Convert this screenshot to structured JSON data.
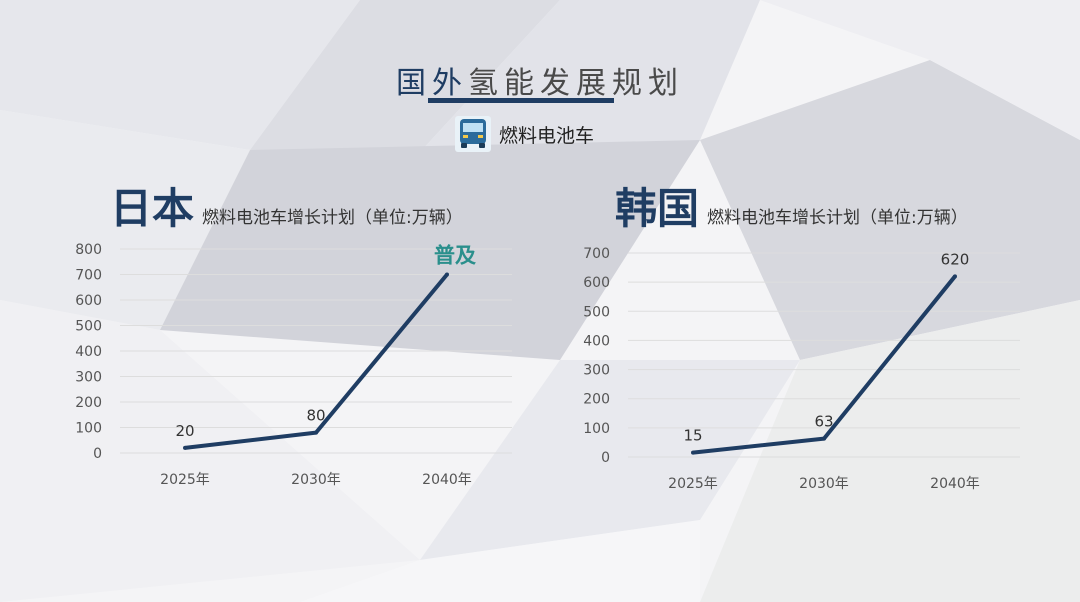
{
  "header": {
    "title_highlight": "国外",
    "title_rest": "氢能发展规划",
    "subtitle": "燃料电池车",
    "subtitle_icon": "bus-icon"
  },
  "colors": {
    "accent": "#1f3d63",
    "annotation": "#2a8f8c",
    "grid": "#dddddd"
  },
  "chart_data": [
    {
      "type": "line",
      "country": "日本",
      "title": "燃料电池车增长计划（单位:万辆）",
      "categories": [
        "2025年",
        "2030年",
        "2040年"
      ],
      "series": [
        {
          "values": [
            20,
            80,
            700
          ]
        }
      ],
      "data_labels": [
        "20",
        "80",
        ""
      ],
      "annotation": {
        "text": "普及",
        "at": "2040年"
      },
      "ylim": [
        0,
        800
      ],
      "yticks": [
        0,
        100,
        200,
        300,
        400,
        500,
        600,
        700,
        800
      ],
      "grid": true
    },
    {
      "type": "line",
      "country": "韩国",
      "title": "燃料电池车增长计划（单位:万辆）",
      "categories": [
        "2025年",
        "2030年",
        "2040年"
      ],
      "series": [
        {
          "values": [
            15,
            63,
            620
          ]
        }
      ],
      "data_labels": [
        "15",
        "63",
        "620"
      ],
      "ylim": [
        0,
        700
      ],
      "yticks": [
        0,
        100,
        200,
        300,
        400,
        500,
        600,
        700
      ],
      "grid": true
    }
  ]
}
